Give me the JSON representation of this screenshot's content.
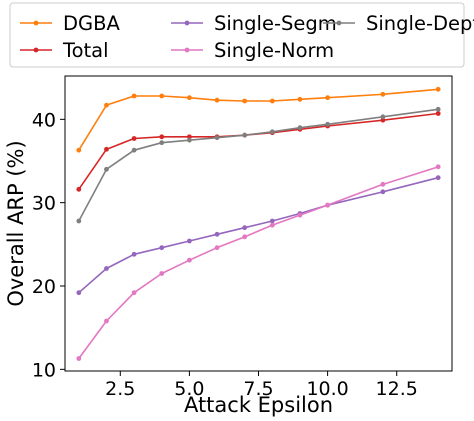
{
  "chart_data": {
    "type": "line",
    "xlabel": "Attack Epsilon",
    "ylabel": "Overall ARP (%)",
    "xlim": [
      0.5,
      14.5
    ],
    "ylim": [
      9.8,
      45.2
    ],
    "xticks": [
      2.5,
      5.0,
      7.5,
      10.0,
      12.5
    ],
    "xtick_labels": [
      "2.5",
      "5.0",
      "7.5",
      "10.0",
      "12.5"
    ],
    "yticks": [
      10,
      20,
      30,
      40
    ],
    "ytick_labels": [
      "10",
      "20",
      "30",
      "40"
    ],
    "grid": false,
    "legend_position": "top, above plot",
    "x": [
      1,
      2,
      3,
      4,
      5,
      6,
      7,
      8,
      9,
      10,
      12,
      14
    ],
    "series": [
      {
        "name": "DGBA",
        "color": "#ff7f0e",
        "values": [
          36.3,
          41.7,
          42.8,
          42.8,
          42.6,
          42.3,
          42.2,
          42.2,
          42.4,
          42.6,
          43.0,
          43.6
        ]
      },
      {
        "name": "Total",
        "color": "#d62728",
        "values": [
          31.6,
          36.4,
          37.7,
          37.9,
          37.9,
          37.9,
          38.1,
          38.4,
          38.8,
          39.2,
          39.9,
          40.7
        ]
      },
      {
        "name": "Single-Segm",
        "color": "#9467bd",
        "values": [
          19.2,
          22.1,
          23.8,
          24.6,
          25.4,
          26.2,
          27.0,
          27.8,
          28.7,
          29.7,
          31.3,
          33.0
        ]
      },
      {
        "name": "Single-Norm",
        "color": "#e377c2",
        "values": [
          11.3,
          15.8,
          19.2,
          21.5,
          23.1,
          24.6,
          25.9,
          27.3,
          28.5,
          29.7,
          32.2,
          34.3
        ]
      },
      {
        "name": "Single-Dept",
        "color": "#7f7f7f",
        "values": [
          27.8,
          34.0,
          36.3,
          37.2,
          37.5,
          37.8,
          38.1,
          38.5,
          39.0,
          39.4,
          40.3,
          41.2
        ]
      }
    ]
  }
}
